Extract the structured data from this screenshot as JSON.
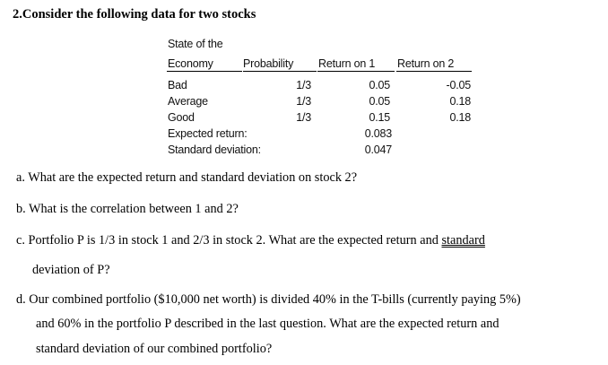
{
  "heading": "2.Consider the following data for two stocks",
  "table": {
    "header_col1_line1": "State of the",
    "header_col1_line2": "Economy",
    "header_probability": "Probability",
    "header_return1": "Return on 1",
    "header_return2": "Return on 2",
    "rows": [
      {
        "state": "Bad",
        "prob": "1/3",
        "r1": "0.05",
        "r2": "-0.05"
      },
      {
        "state": "Average",
        "prob": "1/3",
        "r1": "0.05",
        "r2": "0.18"
      },
      {
        "state": "Good",
        "prob": "1/3",
        "r1": "0.15",
        "r2": "0.18"
      }
    ],
    "expected_label": "Expected return:",
    "expected_value": "0.083",
    "stdev_label": "Standard deviation:",
    "stdev_value": "0.047"
  },
  "questions": {
    "a": "a. What are the expected return and standard deviation on stock 2?",
    "b": "b. What is the correlation between 1 and 2?",
    "c_line1_pre": "c. Portfolio P is 1/3 in stock 1 and 2/3 in stock 2. What are the expected return and ",
    "c_line1_underlined": "standard",
    "c_line2": "deviation of P?",
    "d_line1": "d. Our combined portfolio ($10,000 net worth) is divided 40% in the T-bills (currently paying 5%)",
    "d_line2": "and 60% in the portfolio P described in the last question. What are the expected return and",
    "d_line3": "standard deviation of our combined portfolio?"
  }
}
